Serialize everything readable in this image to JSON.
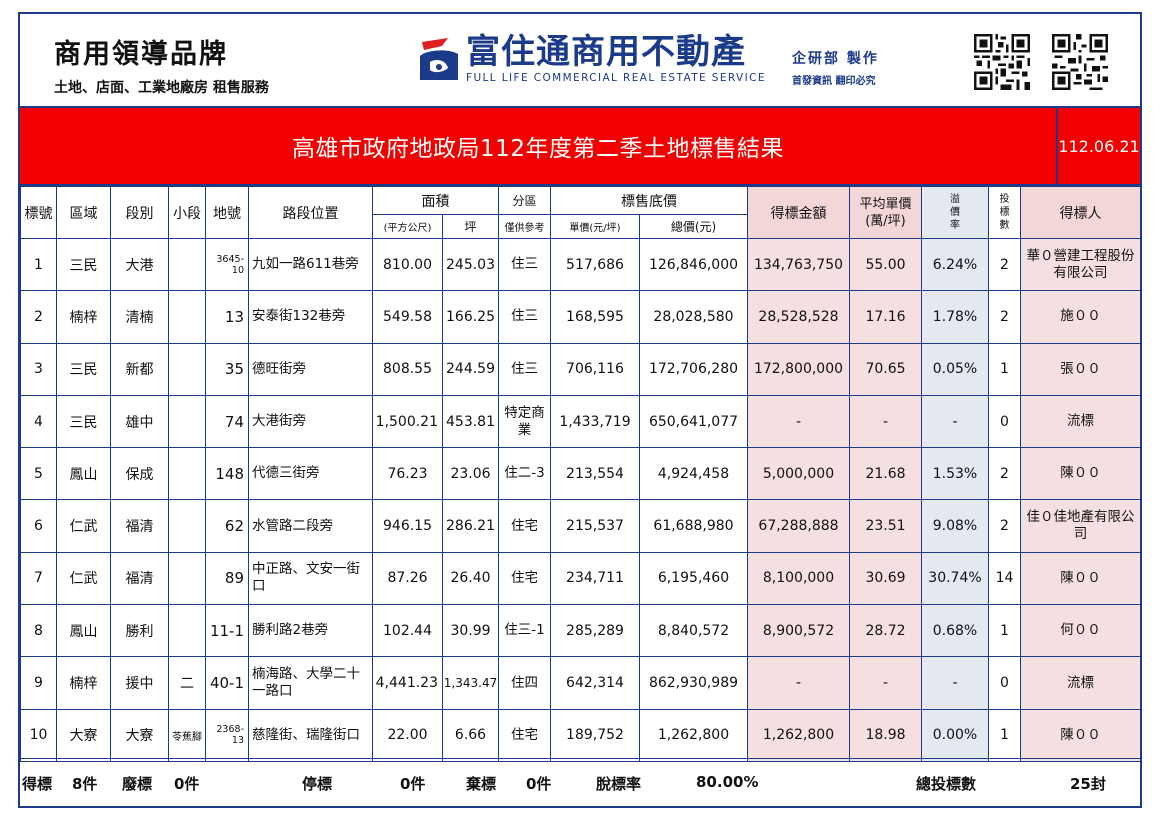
{
  "brand": {
    "left_title": "商用領導品牌",
    "left_subtitle": "土地、店面、工業地廠房 租售服務",
    "center_cn": "富住通商用不動產",
    "center_en": "FULL LIFE COMMERCIAL REAL ESTATE SERVICE",
    "dept_line1": "企研部 製作",
    "dept_line2": "首發資訊 翻印必究"
  },
  "title": "高雄市政府地政局112年度第二季土地標售結果",
  "date": "112.06.21",
  "headers": {
    "no": "標號",
    "district": "區域",
    "section": "段別",
    "subsection": "小段",
    "lot": "地號",
    "location": "路段位置",
    "area": "面積",
    "area_m2": "(平方公尺)",
    "area_ping": "坪",
    "zone": "分區",
    "zone_note": "僅供參考",
    "base_price": "標售底價",
    "unit_price": "單價(元/坪)",
    "total_price": "總價(元)",
    "winning_amount": "得標金額",
    "avg_unit": "平均單價",
    "avg_unit_unit": "(萬/坪)",
    "premium_rate": "溢價率",
    "premium_rate_chars": [
      "溢",
      "價",
      "率"
    ],
    "bids": "投標數",
    "bids_chars": [
      "投",
      "標",
      "數"
    ],
    "winner": "得標人"
  },
  "rows": [
    {
      "no": "1",
      "district": "三民",
      "section": "大港",
      "subsection": "",
      "lot": "3645-10",
      "location": "九如一路611巷旁",
      "area_m2": "810.00",
      "area_ping": "245.03",
      "zone": "住三",
      "unit_price": "517,686",
      "total_price": "126,846,000",
      "winning": "134,763,750",
      "avg": "55.00",
      "premium": "6.24%",
      "bids": "2",
      "winner": "華０營建工程股份有限公司"
    },
    {
      "no": "2",
      "district": "楠梓",
      "section": "清楠",
      "subsection": "",
      "lot": "13",
      "location": "安泰街132巷旁",
      "area_m2": "549.58",
      "area_ping": "166.25",
      "zone": "住三",
      "unit_price": "168,595",
      "total_price": "28,028,580",
      "winning": "28,528,528",
      "avg": "17.16",
      "premium": "1.78%",
      "bids": "2",
      "winner": "施００"
    },
    {
      "no": "3",
      "district": "三民",
      "section": "新都",
      "subsection": "",
      "lot": "35",
      "location": "德旺街旁",
      "area_m2": "808.55",
      "area_ping": "244.59",
      "zone": "住三",
      "unit_price": "706,116",
      "total_price": "172,706,280",
      "winning": "172,800,000",
      "avg": "70.65",
      "premium": "0.05%",
      "bids": "1",
      "winner": "張００"
    },
    {
      "no": "4",
      "district": "三民",
      "section": "雄中",
      "subsection": "",
      "lot": "74",
      "location": "大港街旁",
      "area_m2": "1,500.21",
      "area_ping": "453.81",
      "zone": "特定商業",
      "unit_price": "1,433,719",
      "total_price": "650,641,077",
      "winning": "-",
      "avg": "-",
      "premium": "-",
      "bids": "0",
      "winner": "流標"
    },
    {
      "no": "5",
      "district": "鳳山",
      "section": "保成",
      "subsection": "",
      "lot": "148",
      "location": "代德三街旁",
      "area_m2": "76.23",
      "area_ping": "23.06",
      "zone": "住二-3",
      "unit_price": "213,554",
      "total_price": "4,924,458",
      "winning": "5,000,000",
      "avg": "21.68",
      "premium": "1.53%",
      "bids": "2",
      "winner": "陳００"
    },
    {
      "no": "6",
      "district": "仁武",
      "section": "福清",
      "subsection": "",
      "lot": "62",
      "location": "水管路二段旁",
      "area_m2": "946.15",
      "area_ping": "286.21",
      "zone": "住宅",
      "unit_price": "215,537",
      "total_price": "61,688,980",
      "winning": "67,288,888",
      "avg": "23.51",
      "premium": "9.08%",
      "bids": "2",
      "winner": "佳０佳地產有限公司"
    },
    {
      "no": "7",
      "district": "仁武",
      "section": "福清",
      "subsection": "",
      "lot": "89",
      "location": "中正路、文安一街口",
      "area_m2": "87.26",
      "area_ping": "26.40",
      "zone": "住宅",
      "unit_price": "234,711",
      "total_price": "6,195,460",
      "winning": "8,100,000",
      "avg": "30.69",
      "premium": "30.74%",
      "bids": "14",
      "winner": "陳００"
    },
    {
      "no": "8",
      "district": "鳳山",
      "section": "勝利",
      "subsection": "",
      "lot": "11-1",
      "location": "勝利路2巷旁",
      "area_m2": "102.44",
      "area_ping": "30.99",
      "zone": "住三-1",
      "unit_price": "285,289",
      "total_price": "8,840,572",
      "winning": "8,900,572",
      "avg": "28.72",
      "premium": "0.68%",
      "bids": "1",
      "winner": "何００"
    },
    {
      "no": "9",
      "district": "楠梓",
      "section": "援中",
      "subsection": "二",
      "lot": "40-1",
      "location": "楠海路、大學二十一路口",
      "area_m2": "4,441.23",
      "area_ping": "1,343.47",
      "zone": "住四",
      "unit_price": "642,314",
      "total_price": "862,930,989",
      "winning": "-",
      "avg": "-",
      "premium": "-",
      "bids": "0",
      "winner": "流標"
    },
    {
      "no": "10",
      "district": "大寮",
      "section": "大寮",
      "subsection": "苓蕉腳",
      "lot": "2368-13",
      "location": "慈隆街、瑞隆街口",
      "area_m2": "22.00",
      "area_ping": "6.66",
      "zone": "住宅",
      "unit_price": "189,752",
      "total_price": "1,262,800",
      "winning": "1,262,800",
      "avg": "18.98",
      "premium": "0.00%",
      "bids": "1",
      "winner": "陳００"
    }
  ],
  "footer": {
    "won_label": "得標",
    "won_value": "8件",
    "void_label": "廢標",
    "void_value": "0件",
    "stopped_label": "停標",
    "stopped_value": "0件",
    "abandoned_label": "棄標",
    "abandoned_value": "0件",
    "fail_rate_label": "脫標率",
    "fail_rate_value": "80.00%",
    "total_bids_label": "總投標數",
    "total_bids_value": "25封"
  },
  "watermark_text": "富住通商用不動產",
  "colors": {
    "border": "#1b3a8a",
    "title_bar": "#f20000",
    "pink_cell": "#f6dfe1",
    "blue_cell": "#e3e8f1"
  }
}
